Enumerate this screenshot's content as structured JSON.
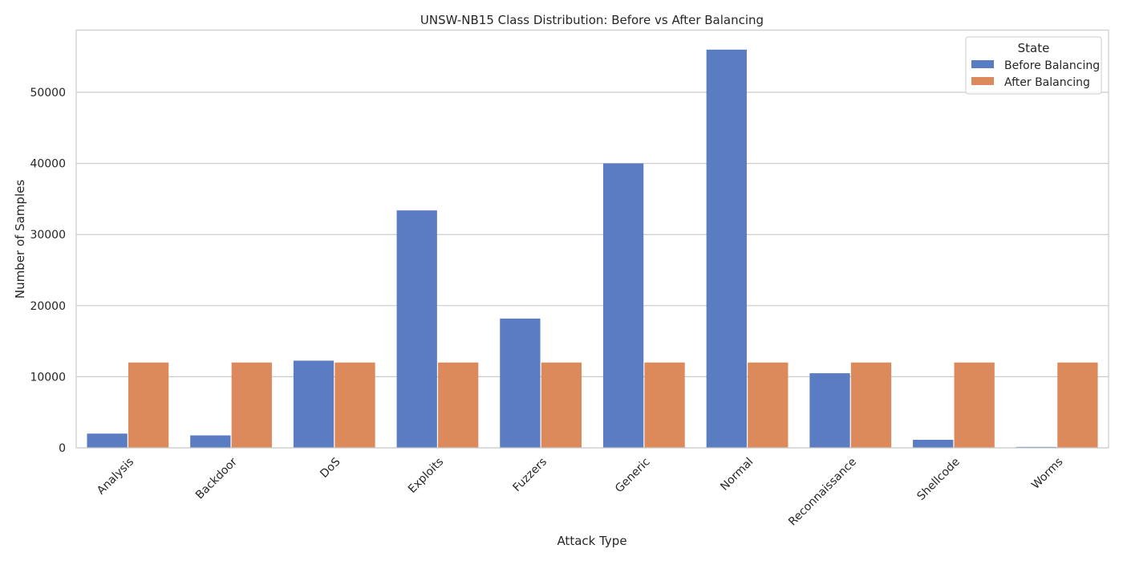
{
  "chart_data": {
    "type": "bar",
    "title": "UNSW-NB15 Class Distribution: Before vs After Balancing",
    "xlabel": "Attack Type",
    "ylabel": "Number of Samples",
    "categories": [
      "Analysis",
      "Backdoor",
      "DoS",
      "Exploits",
      "Fuzzers",
      "Generic",
      "Normal",
      "Reconnaissance",
      "Shellcode",
      "Worms"
    ],
    "series": [
      {
        "name": "Before Balancing",
        "color": "#5a7cc2",
        "values": [
          2000,
          1750,
          12260,
          33390,
          18180,
          40000,
          56000,
          10490,
          1130,
          130
        ]
      },
      {
        "name": "After Balancing",
        "color": "#dc8a5c",
        "values": [
          12000,
          12000,
          12000,
          12000,
          12000,
          12000,
          12000,
          12000,
          12000,
          12000
        ]
      }
    ],
    "ylim": [
      0,
      58750
    ],
    "yticks": [
      0,
      10000,
      20000,
      30000,
      40000,
      50000
    ],
    "ytick_labels": [
      "0",
      "10000",
      "20000",
      "30000",
      "40000",
      "50000"
    ],
    "grid": "horizontal",
    "legend": {
      "title": "State",
      "position": "top-right"
    }
  }
}
